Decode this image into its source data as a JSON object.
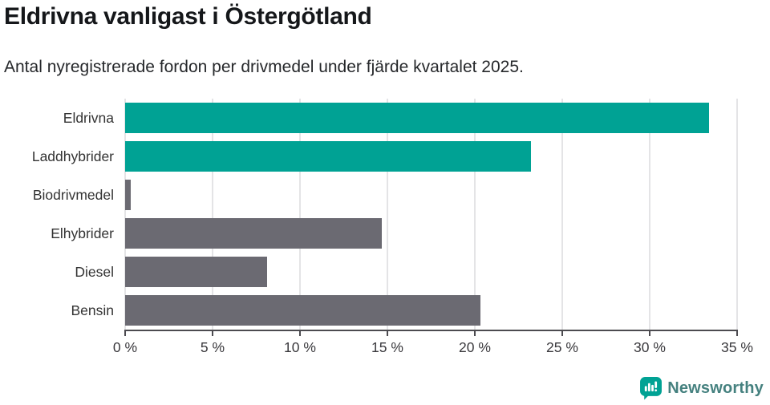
{
  "header": {
    "title": "Eldrivna vanligast i Östergötland",
    "subtitle": "Antal nyregistrerade fordon per drivmedel under fjärde kvartalet 2025."
  },
  "chart_data": {
    "type": "bar",
    "orientation": "horizontal",
    "title": "Eldrivna vanligast i Östergötland",
    "subtitle": "Antal nyregistrerade fordon per drivmedel under fjärde kvartalet 2025.",
    "categories": [
      "Eldrivna",
      "Laddhybrider",
      "Biodrivmedel",
      "Elhybrider",
      "Diesel",
      "Bensin"
    ],
    "values": [
      33.4,
      23.2,
      0.3,
      14.7,
      8.1,
      20.3
    ],
    "unit": "%",
    "bar_colors": [
      "#00a294",
      "#00a294",
      "#6b6a72",
      "#6b6a72",
      "#6b6a72",
      "#6b6a72"
    ],
    "xlabel": "",
    "ylabel": "",
    "xlim": [
      0,
      35
    ],
    "x_ticks": [
      0,
      5,
      10,
      15,
      20,
      25,
      30,
      35
    ],
    "x_tick_labels": [
      "0 %",
      "5 %",
      "10 %",
      "15 %",
      "20 %",
      "25 %",
      "30 %",
      "35 %"
    ],
    "grid": "vertical-gridlines-on",
    "legend": "none"
  },
  "branding": {
    "logo_text": "Newsworthy",
    "logo_icon": "speech-bubble-bar-chart-icon"
  },
  "colors": {
    "accent_teal": "#00a294",
    "neutral_gray": "#6b6a72",
    "gridline": "#e4e4e6",
    "axis": "#4c4b50",
    "logo_text": "#45817f"
  }
}
